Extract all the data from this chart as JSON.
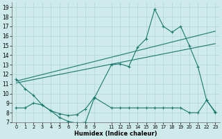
{
  "bg_color": "#ceeaea",
  "grid_color": "#b8d8d8",
  "line_color": "#1a7a6e",
  "xlabel": "Humidex (Indice chaleur)",
  "xlim": [
    -0.5,
    23.5
  ],
  "ylim": [
    7,
    19.5
  ],
  "xticks": [
    0,
    1,
    2,
    3,
    4,
    5,
    6,
    7,
    8,
    9,
    11,
    12,
    13,
    14,
    15,
    16,
    17,
    18,
    19,
    20,
    21,
    22,
    23
  ],
  "yticks": [
    7,
    8,
    9,
    10,
    11,
    12,
    13,
    14,
    15,
    16,
    17,
    18,
    19
  ],
  "series1_x": [
    0,
    1,
    2,
    3,
    4,
    5,
    6,
    7,
    8,
    9,
    11,
    12,
    13,
    14,
    15,
    16,
    17,
    18,
    19,
    20,
    21,
    22,
    23
  ],
  "series1_y": [
    11.5,
    10.5,
    9.8,
    8.8,
    8.2,
    7.5,
    7.1,
    6.9,
    7.0,
    9.5,
    13.0,
    13.1,
    12.8,
    14.8,
    15.7,
    18.8,
    17.0,
    16.4,
    17.0,
    15.0,
    12.8,
    9.3,
    8.1
  ],
  "series2_x": [
    0,
    23
  ],
  "series2_y": [
    11.1,
    15.2
  ],
  "series3_x": [
    0,
    23
  ],
  "series3_y": [
    11.3,
    16.5
  ],
  "series4_x": [
    0,
    1,
    2,
    3,
    4,
    5,
    6,
    7,
    8,
    9,
    11,
    12,
    13,
    14,
    15,
    16,
    17,
    18,
    19,
    20,
    21,
    22,
    23
  ],
  "series4_y": [
    8.5,
    8.5,
    9.0,
    8.8,
    8.2,
    7.9,
    7.7,
    7.8,
    8.4,
    9.6,
    8.5,
    8.5,
    8.5,
    8.5,
    8.5,
    8.5,
    8.5,
    8.5,
    8.5,
    8.0,
    8.0,
    9.3,
    8.0
  ]
}
